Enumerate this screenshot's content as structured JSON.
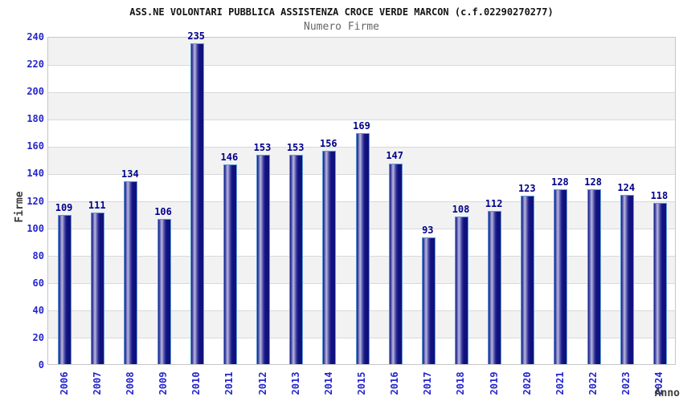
{
  "chart_data": {
    "type": "bar",
    "title": "ASS.NE VOLONTARI PUBBLICA ASSISTENZA CROCE VERDE MARCON (c.f.02290270277)",
    "subtitle": "Numero Firme",
    "xlabel": "Anno",
    "ylabel": "Firme",
    "categories": [
      "2006",
      "2007",
      "2008",
      "2009",
      "2010",
      "2011",
      "2012",
      "2013",
      "2014",
      "2015",
      "2016",
      "2017",
      "2018",
      "2019",
      "2020",
      "2021",
      "2022",
      "2023",
      "2024"
    ],
    "values": [
      109,
      111,
      134,
      106,
      235,
      146,
      153,
      153,
      156,
      169,
      147,
      93,
      108,
      112,
      123,
      128,
      128,
      124,
      118
    ],
    "ylim": [
      0,
      240
    ],
    "yticks": [
      0,
      20,
      40,
      60,
      80,
      100,
      120,
      140,
      160,
      180,
      200,
      220,
      240
    ],
    "grid": "horizontal-bands-alternating",
    "legend": "none",
    "colors": {
      "bar_dark": "#10107e",
      "bar_light": "#b9b9de",
      "bar_border": "#5b9bd5",
      "tick_label": "#2525cd",
      "value_label": "#00008b",
      "band": "#f2f2f2",
      "gridline": "#d9d9d9",
      "title": "#141414",
      "subtitle": "#666666",
      "axis_title": "#3c3c3c"
    }
  }
}
